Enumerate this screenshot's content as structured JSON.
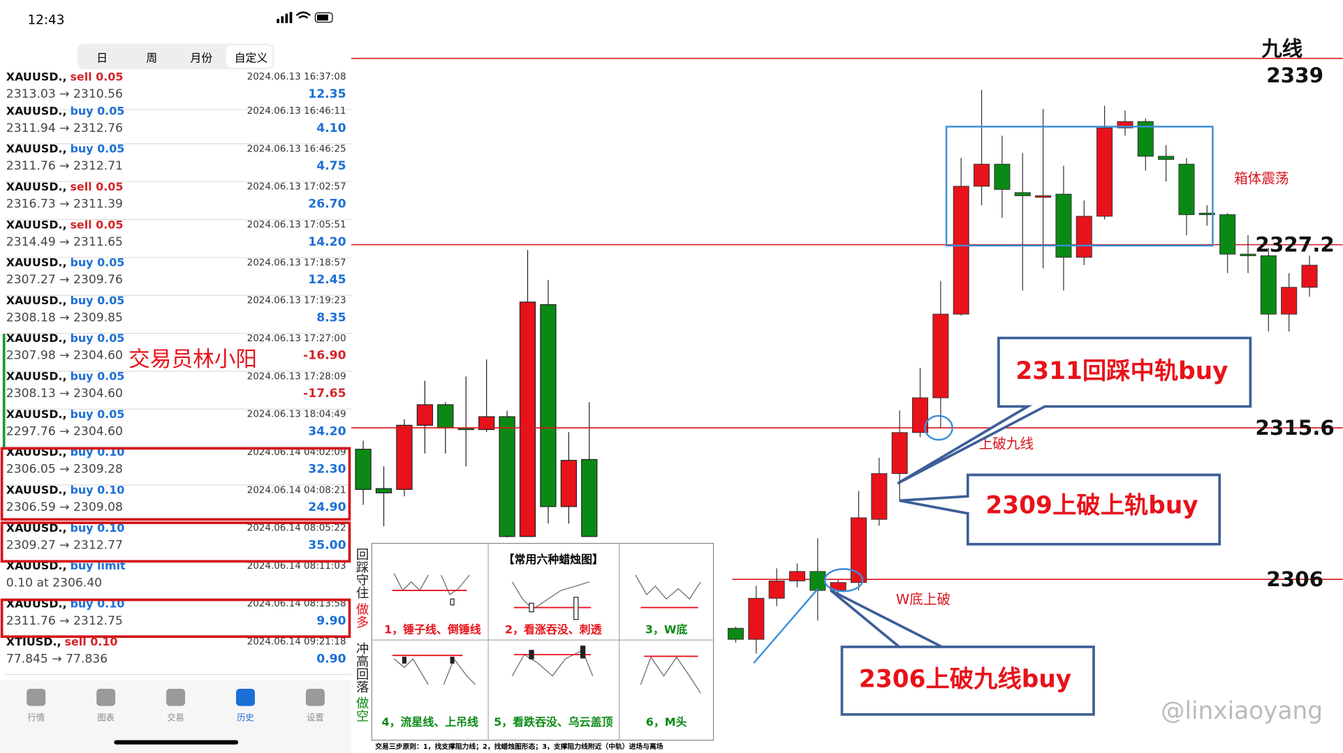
{
  "status_bar": {
    "time": "12:43"
  },
  "tabs": [
    "日",
    "周",
    "月份",
    "自定义"
  ],
  "trades": [
    {
      "symbol": "XAUUSD.,",
      "side": "sell 0.05",
      "time": "2024.06.13 16:37:08",
      "prices": "2313.03 → 2310.56",
      "profit": "12.35"
    },
    {
      "symbol": "XAUUSD.,",
      "side": "buy 0.05",
      "time": "2024.06.13 16:46:11",
      "prices": "2311.94 → 2312.76",
      "profit": "4.10"
    },
    {
      "symbol": "XAUUSD.,",
      "side": "buy 0.05",
      "time": "2024.06.13 16:46:25",
      "prices": "2311.76 → 2312.71",
      "profit": "4.75"
    },
    {
      "symbol": "XAUUSD.,",
      "side": "sell 0.05",
      "time": "2024.06.13 17:02:57",
      "prices": "2316.73 → 2311.39",
      "profit": "26.70"
    },
    {
      "symbol": "XAUUSD.,",
      "side": "sell 0.05",
      "time": "2024.06.13 17:05:51",
      "prices": "2314.49 → 2311.65",
      "profit": "14.20"
    },
    {
      "symbol": "XAUUSD.,",
      "side": "buy 0.05",
      "time": "2024.06.13 17:18:57",
      "prices": "2307.27 → 2309.76",
      "profit": "12.45"
    },
    {
      "symbol": "XAUUSD.,",
      "side": "buy 0.05",
      "time": "2024.06.13 17:19:23",
      "prices": "2308.18 → 2309.85",
      "profit": "8.35"
    },
    {
      "symbol": "XAUUSD.,",
      "side": "buy 0.05",
      "time": "2024.06.13 17:27:00",
      "prices": "2307.98 → 2304.60",
      "profit": "-16.90"
    },
    {
      "symbol": "XAUUSD.,",
      "side": "buy 0.05",
      "time": "2024.06.13 17:28:09",
      "prices": "2308.13 → 2304.60",
      "profit": "-17.65"
    },
    {
      "symbol": "XAUUSD.,",
      "side": "buy 0.05",
      "time": "2024.06.13 18:04:49",
      "prices": "2297.76 → 2304.60",
      "profit": "34.20"
    },
    {
      "symbol": "XAUUSD.,",
      "side": "buy 0.10",
      "time": "2024.06.14 04:02:09",
      "prices": "2306.05 → 2309.28",
      "profit": "32.30"
    },
    {
      "symbol": "XAUUSD.,",
      "side": "buy 0.10",
      "time": "2024.06.14 04:08:21",
      "prices": "2306.59 → 2309.08",
      "profit": "24.90"
    },
    {
      "symbol": "XAUUSD.,",
      "side": "buy 0.10",
      "time": "2024.06.14 08:05:22",
      "prices": "2309.27 → 2312.77",
      "profit": "35.00"
    },
    {
      "symbol": "XAUUSD.,",
      "side": "buy limit",
      "time": "2024.06.14 08:11:03",
      "prices": "0.10 at 2306.40"
    },
    {
      "symbol": "XAUUSD.,",
      "side": "buy 0.10",
      "time": "2024.06.14 08:13:58",
      "prices": "2311.76 → 2312.75",
      "profit": "9.90"
    },
    {
      "symbol": "XTIUSD.,",
      "side": "sell 0.10",
      "time": "2024.06.14 09:21:18",
      "prices": "77.845 → 77.836",
      "profit": "0.90"
    }
  ],
  "nav": [
    "行情",
    "图表",
    "交易",
    "历史",
    "设置"
  ],
  "overlay_name": "交易员林小阳",
  "legend_panel": {
    "title": "【常用六种蜡烛图】",
    "side_labels": [
      "回踩守住",
      "做多",
      "冲高回落",
      "做空"
    ],
    "items": [
      "1，锤子线、倒锤线",
      "2，看涨吞没、刺透",
      "3，W底",
      "4，流星线、上吊线",
      "5，看跌吞没、乌云盖顶",
      "6，M头"
    ],
    "footer": "交易三步原则：1，找支撑阻力线；2，找蜡烛图形态；3，支撑阻力线附近（中轨）进场与离场"
  },
  "chart_data": {
    "type": "candlestick",
    "ylim": [
      2295,
      2342.7
    ],
    "open": [
      2302.9,
      2302.2,
      2304.8,
      2305.9,
      2306.5,
      2305.3,
      2305.8,
      2309.8,
      2312.7,
      2315.3,
      2317.5,
      2322.8,
      2330.9,
      2332.3,
      2330.5,
      2330.2,
      2330.4,
      2326.4,
      2329.0,
      2334.6,
      2335.0,
      2332.8,
      2332.3,
      2329.2,
      2329.1,
      2326.6,
      2326.5,
      2322.8,
      2324.5
    ],
    "high": [
      2303.0,
      2305.6,
      2306.7,
      2307.0,
      2308.6,
      2306.0,
      2311.6,
      2313.7,
      2316.7,
      2319.4,
      2324.9,
      2332.7,
      2337.0,
      2334.1,
      2333.0,
      2335.8,
      2332.2,
      2330.0,
      2336.0,
      2335.7,
      2335.2,
      2333.5,
      2332.7,
      2329.7,
      2329.2,
      2327.8,
      2327.0,
      2325.4,
      2326.5
    ],
    "low": [
      2302.0,
      2301.3,
      2304.3,
      2305.5,
      2303.4,
      2305.1,
      2305.3,
      2309.4,
      2311.0,
      2315.0,
      2315.6,
      2322.7,
      2329.7,
      2328.9,
      2324.3,
      2325.7,
      2324.3,
      2325.9,
      2328.8,
      2334.1,
      2331.9,
      2331.2,
      2327.8,
      2328.4,
      2325.4,
      2325.4,
      2321.7,
      2321.7,
      2323.9
    ],
    "close": [
      2302.2,
      2304.8,
      2305.9,
      2306.5,
      2305.3,
      2305.8,
      2309.9,
      2312.7,
      2315.3,
      2317.5,
      2322.8,
      2330.9,
      2332.3,
      2330.7,
      2330.3,
      2330.3,
      2326.4,
      2329.0,
      2334.6,
      2335.0,
      2332.8,
      2332.6,
      2329.1,
      2329.1,
      2326.6,
      2326.5,
      2322.8,
      2324.5,
      2325.9
    ],
    "up_color": "#e8121a",
    "down_color": "#0a8a14",
    "levels": [
      2339,
      2327.2,
      2315.6,
      2306
    ],
    "level_name": "九线",
    "level_color": "#d9141c",
    "box_label": "箱体震荡",
    "annotations": [
      "上破九线",
      "W底上破"
    ],
    "callouts": [
      "2311回踩中轨buy",
      "2309上破上轨buy",
      "2306上破九线buy"
    ],
    "watermark": "@linxiaoyang"
  }
}
